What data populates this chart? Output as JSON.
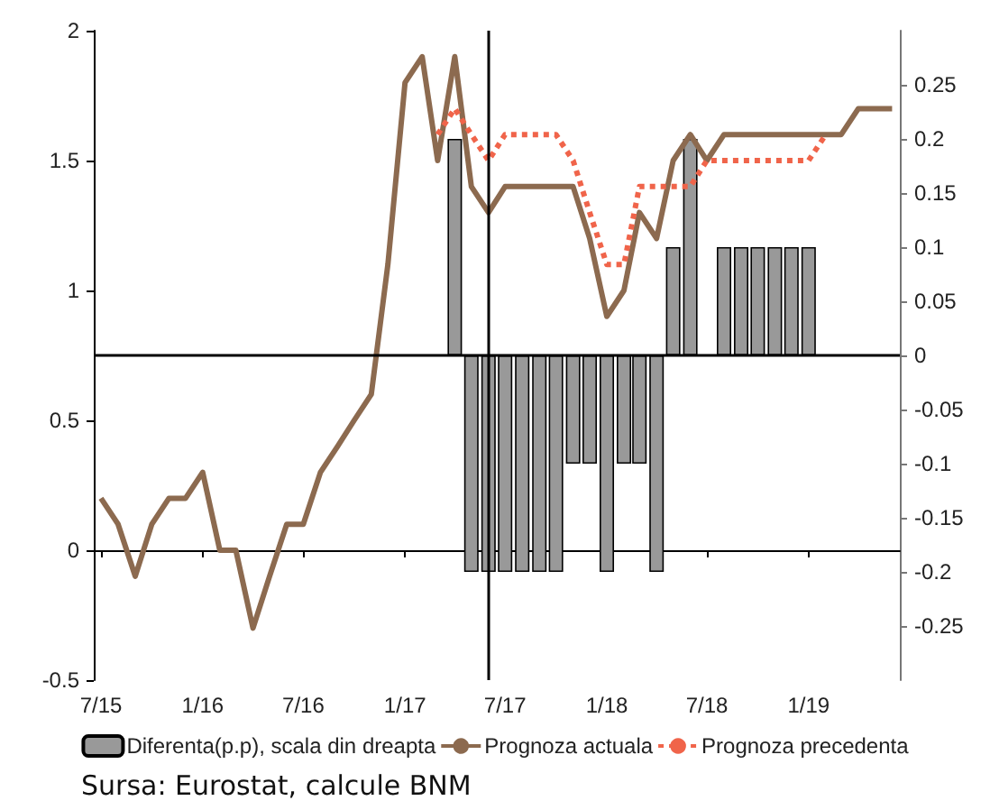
{
  "chart_data": {
    "type": "line",
    "x": [
      "2015-07",
      "2015-08",
      "2015-09",
      "2015-10",
      "2015-11",
      "2015-12",
      "2016-01",
      "2016-02",
      "2016-03",
      "2016-04",
      "2016-05",
      "2016-06",
      "2016-07",
      "2016-08",
      "2016-09",
      "2016-10",
      "2016-11",
      "2016-12",
      "2017-01",
      "2017-02",
      "2017-03",
      "2017-04",
      "2017-05",
      "2017-06",
      "2017-07",
      "2017-08",
      "2017-09",
      "2017-10",
      "2017-11",
      "2017-12",
      "2018-01",
      "2018-02",
      "2018-03",
      "2018-04",
      "2018-05",
      "2018-06",
      "2018-07",
      "2018-08",
      "2018-09",
      "2018-10",
      "2018-11",
      "2018-12",
      "2019-01",
      "2019-02",
      "2019-03",
      "2019-04",
      "2019-05",
      "2019-06"
    ],
    "xlim": [
      "2015-06-18",
      "2019-06-15"
    ],
    "xticks": [
      {
        "value": "2015-07",
        "label": "7/15"
      },
      {
        "value": "2016-01",
        "label": "1/16"
      },
      {
        "value": "2016-07",
        "label": "7/16"
      },
      {
        "value": "2017-01",
        "label": "1/17"
      },
      {
        "value": "2017-07",
        "label": "7/17"
      },
      {
        "value": "2018-01",
        "label": "1/18"
      },
      {
        "value": "2018-07",
        "label": "7/18"
      },
      {
        "value": "2019-01",
        "label": "1/19"
      }
    ],
    "ylim": [
      -0.5,
      2
    ],
    "yticks": [
      -0.5,
      0,
      0.5,
      1,
      1.5,
      2
    ],
    "y2lim": [
      -0.3,
      0.3
    ],
    "y2ticks": [
      -0.25,
      -0.2,
      -0.15,
      -0.1,
      -0.05,
      0,
      0.05,
      0.1,
      0.15,
      0.2,
      0.25
    ],
    "series": [
      {
        "name": "Diferenta(p.p), scala din dreapta",
        "type": "bar",
        "axis": "y2",
        "color": "#999999",
        "values": [
          null,
          null,
          null,
          null,
          null,
          null,
          null,
          null,
          null,
          null,
          null,
          null,
          null,
          null,
          null,
          null,
          null,
          null,
          null,
          null,
          null,
          0.2,
          -0.2,
          -0.2,
          -0.2,
          -0.2,
          -0.2,
          -0.2,
          -0.1,
          -0.1,
          -0.2,
          -0.1,
          -0.1,
          -0.2,
          0.1,
          0.2,
          null,
          0.1,
          0.1,
          0.1,
          0.1,
          0.1,
          0.1,
          null,
          null,
          null,
          null,
          null
        ]
      },
      {
        "name": "Prognoza actuala",
        "color": "#8c6a4f",
        "line_style": "solid",
        "values": [
          0.2,
          0.1,
          -0.1,
          0.1,
          0.2,
          0.2,
          0.3,
          0,
          0,
          -0.3,
          -0.1,
          0.1,
          0.1,
          0.3,
          0.4,
          0.5,
          0.6,
          1.1,
          1.8,
          1.9,
          1.5,
          1.9,
          1.4,
          1.3,
          1.4,
          1.4,
          1.4,
          1.4,
          1.4,
          1.2,
          0.9,
          1.0,
          1.3,
          1.2,
          1.5,
          1.6,
          1.5,
          1.6,
          1.6,
          1.6,
          1.6,
          1.6,
          1.6,
          1.6,
          1.6,
          1.7,
          1.7,
          1.7
        ]
      },
      {
        "name": "Prognoza precedenta",
        "color": "#f0644a",
        "line_style": "dotted",
        "values": [
          null,
          null,
          null,
          null,
          null,
          null,
          null,
          null,
          null,
          null,
          null,
          null,
          null,
          null,
          null,
          null,
          null,
          null,
          null,
          null,
          1.6,
          1.7,
          1.6,
          1.5,
          1.6,
          1.6,
          1.6,
          1.6,
          1.5,
          1.3,
          1.1,
          1.1,
          1.4,
          1.4,
          1.4,
          1.4,
          1.5,
          1.5,
          1.5,
          1.5,
          1.5,
          1.5,
          1.5,
          1.6,
          null,
          null,
          null,
          null
        ]
      }
    ],
    "ref_lines": [
      {
        "axis": "x",
        "value": "2017-06",
        "color": "#000000"
      },
      {
        "axis": "y2",
        "value": 0,
        "color": "#000000"
      }
    ],
    "legend": "bottom",
    "grid": false,
    "marker": "none",
    "annotations": [
      "Sursa: Eurostat, calcule BNM"
    ]
  }
}
